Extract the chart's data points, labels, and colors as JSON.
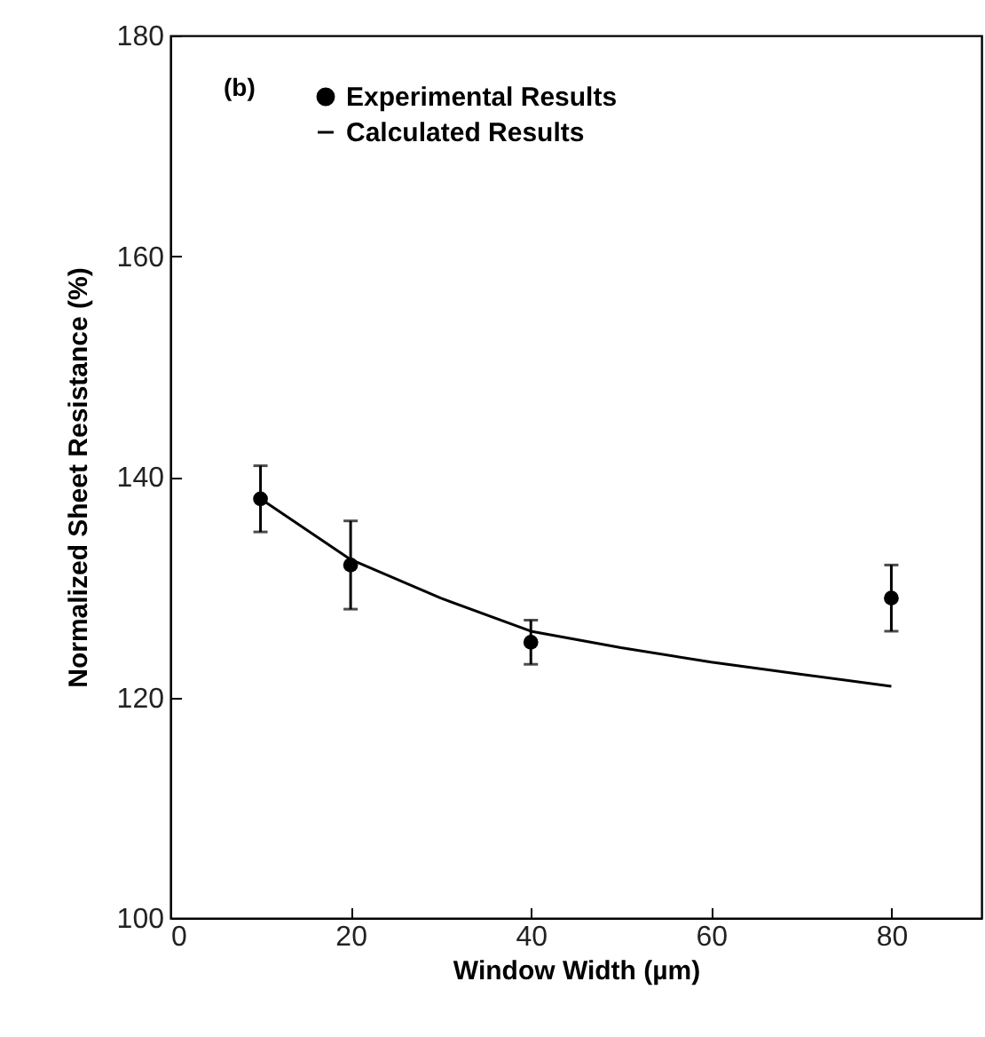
{
  "chart_data": {
    "type": "scatter",
    "xlabel": "Window Width (µm)",
    "ylabel": "Normalized Sheet Resistance (%)",
    "annotations": [
      "(b)"
    ],
    "xlim": [
      0,
      90
    ],
    "xticks": [
      0,
      20,
      40,
      60,
      80
    ],
    "ylim": [
      100,
      180
    ],
    "yticks": [
      100,
      120,
      140,
      160,
      180
    ],
    "grid": false,
    "legend": "top left",
    "series": [
      {
        "name": "Experimental Results",
        "marker": "circle",
        "color": "#000000",
        "x": [
          10,
          20,
          40,
          80
        ],
        "values": [
          138,
          132,
          125,
          129
        ],
        "errors": [
          [
            135,
            141
          ],
          [
            128,
            136
          ],
          [
            123,
            127
          ],
          [
            126,
            132
          ]
        ]
      },
      {
        "name": "Calculated Results",
        "type": "line",
        "color": "#000000",
        "x": [
          10,
          20,
          30,
          40,
          50,
          60,
          70,
          80
        ],
        "values": [
          138,
          132.5,
          129,
          126,
          124.5,
          123.2,
          122.1,
          121
        ]
      }
    ]
  }
}
